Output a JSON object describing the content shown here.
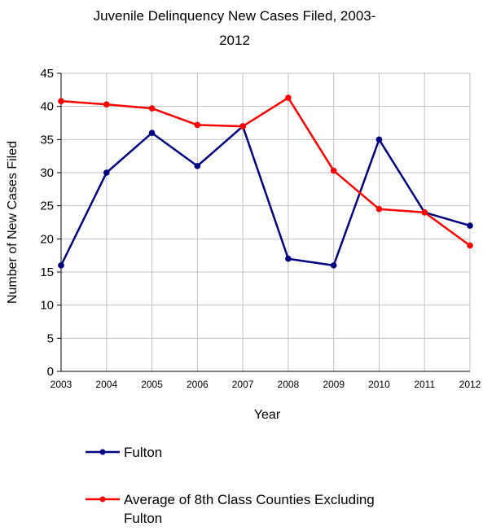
{
  "chart_data": {
    "type": "line",
    "title_lines": [
      "Juvenile Delinquency New Cases Filed, 2003-",
      "2012"
    ],
    "xlabel": "Year",
    "ylabel": "Number of New Cases Filed",
    "categories": [
      "2003",
      "2004",
      "2005",
      "2006",
      "2007",
      "2008",
      "2009",
      "2010",
      "2011",
      "2012"
    ],
    "ylim": [
      0,
      45
    ],
    "yticks": [
      0,
      5,
      10,
      15,
      20,
      25,
      30,
      35,
      40,
      45
    ],
    "grid": true,
    "legend_position": "bottom",
    "series": [
      {
        "name": "Fulton",
        "color": "#000080",
        "values": [
          16,
          30,
          36,
          31,
          37,
          17,
          16,
          35,
          24,
          22
        ]
      },
      {
        "name_lines": [
          "Average of 8th Class Counties Excluding",
          "Fulton"
        ],
        "color": "#ff0000",
        "values": [
          40.8,
          40.3,
          39.7,
          37.2,
          37,
          41.3,
          30.3,
          24.5,
          24,
          19
        ]
      }
    ]
  }
}
